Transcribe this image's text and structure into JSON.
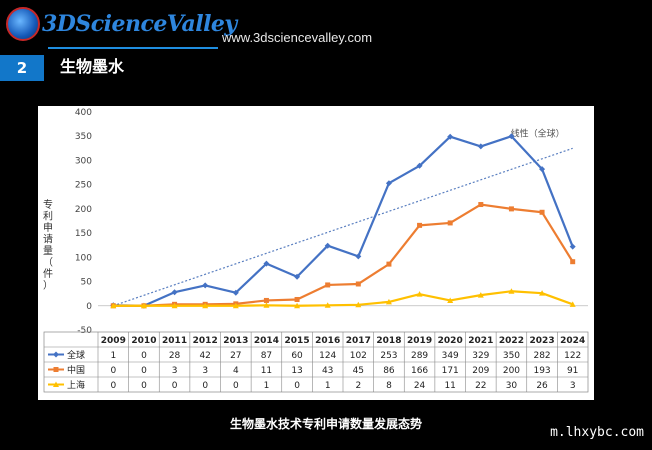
{
  "header": {
    "logo_text": "3DScienceValley",
    "url": "www.3dsciencevalley.com",
    "section_number": "2",
    "section_title": "生物墨水"
  },
  "caption": "生物墨水技术专利申请数量发展态势",
  "watermark": "m.lhxybc.com",
  "colors": {
    "global": "#4472c4",
    "china": "#ed7d31",
    "shanghai": "#ffc000",
    "trend": "#5a7fc0",
    "accent": "#1277c9"
  },
  "chart_data": {
    "type": "line",
    "ylabel": "专利申请量（件）",
    "ylim": [
      -50,
      400
    ],
    "yticks": [
      -50,
      0,
      50,
      100,
      150,
      200,
      250,
      300,
      350,
      400
    ],
    "x": [
      "2009",
      "2010",
      "2011",
      "2012",
      "2013",
      "2014",
      "2015",
      "2016",
      "2017",
      "2018",
      "2019",
      "2020",
      "2021",
      "2022",
      "2023",
      "2024"
    ],
    "series": [
      {
        "name": "全球",
        "color": "#4472c4",
        "marker": "diamond",
        "values": [
          1,
          0,
          28,
          42,
          27,
          87,
          60,
          124,
          102,
          253,
          289,
          349,
          329,
          350,
          282,
          122
        ]
      },
      {
        "name": "中国",
        "color": "#ed7d31",
        "marker": "square",
        "values": [
          0,
          0,
          3,
          3,
          4,
          11,
          13,
          43,
          45,
          86,
          166,
          171,
          209,
          200,
          193,
          91
        ]
      },
      {
        "name": "上海",
        "color": "#ffc000",
        "marker": "triangle",
        "values": [
          0,
          0,
          0,
          0,
          0,
          1,
          0,
          1,
          2,
          8,
          24,
          11,
          22,
          30,
          26,
          3
        ]
      }
    ],
    "trendline": {
      "label": "线性（全球）",
      "start": 0,
      "end": 325
    },
    "grid": false,
    "legend": "table-below"
  }
}
